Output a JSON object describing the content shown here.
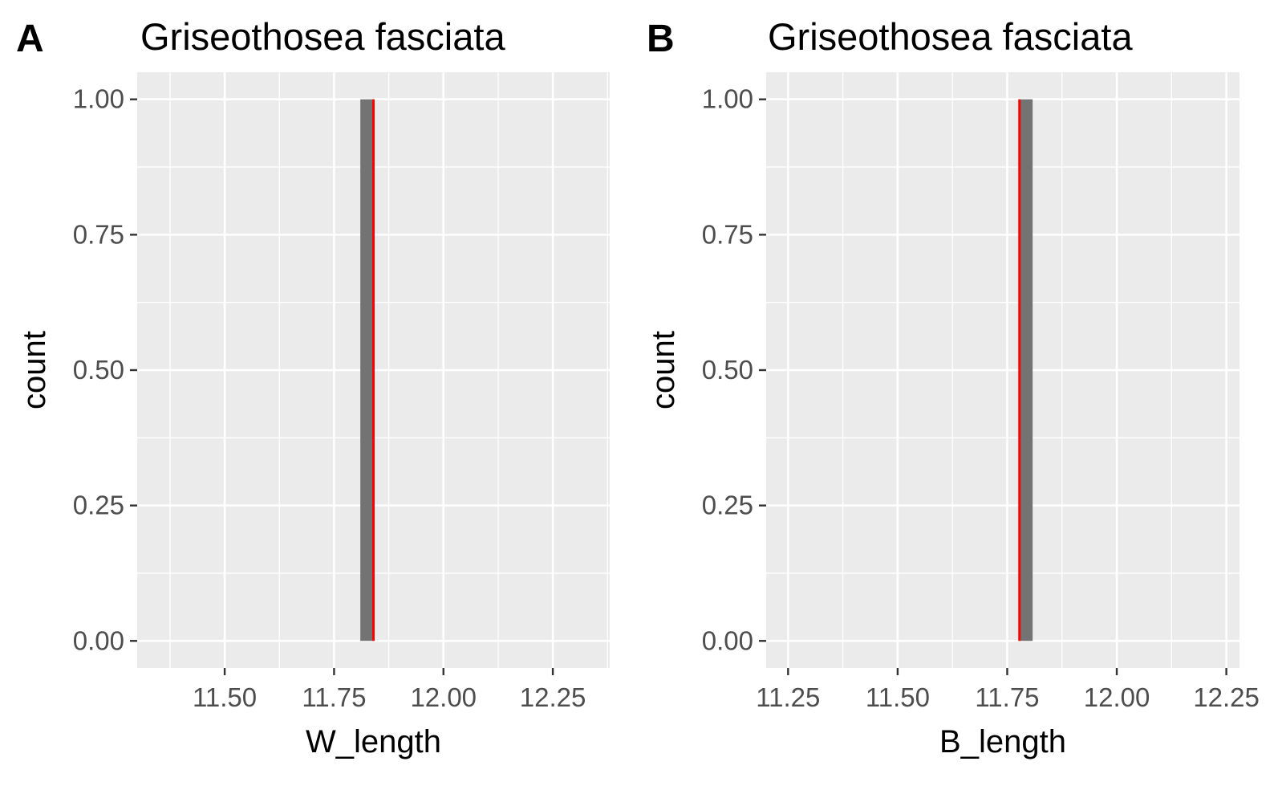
{
  "chart_data": [
    {
      "type": "bar",
      "tag": "A",
      "title": "Griseothosea fasciata",
      "xlabel": "W_length",
      "ylabel": "count",
      "xlim": [
        11.3,
        12.38
      ],
      "ylim": [
        -0.05,
        1.05
      ],
      "x_ticks": [
        11.5,
        11.75,
        12.0,
        12.25
      ],
      "x_tick_labels": [
        "11.50",
        "11.75",
        "12.00",
        "12.25"
      ],
      "y_ticks": [
        0,
        0.25,
        0.5,
        0.75,
        1.0
      ],
      "y_tick_labels": [
        "0.00",
        "0.25",
        "0.50",
        "0.75",
        "1.00"
      ],
      "bars": [
        {
          "x_start": 11.81,
          "x_end": 11.842,
          "count": 1
        }
      ],
      "reference_line": {
        "x": 11.84,
        "color": "#ff0000"
      },
      "grid": true,
      "bar_color": "#737373",
      "panel_color": "#ebebeb"
    },
    {
      "type": "bar",
      "tag": "B",
      "title": "Griseothosea fasciata",
      "xlabel": "B_length",
      "ylabel": "count",
      "xlim": [
        11.2,
        12.28
      ],
      "ylim": [
        -0.05,
        1.05
      ],
      "x_ticks": [
        11.25,
        11.5,
        11.75,
        12.0,
        12.25
      ],
      "x_tick_labels": [
        "11.25",
        "11.50",
        "11.75",
        "12.00",
        "12.25"
      ],
      "y_ticks": [
        0,
        0.25,
        0.5,
        0.75,
        1.0
      ],
      "y_tick_labels": [
        "0.00",
        "0.25",
        "0.50",
        "0.75",
        "1.00"
      ],
      "bars": [
        {
          "x_start": 11.776,
          "x_end": 11.808,
          "count": 1
        }
      ],
      "reference_line": {
        "x": 11.778,
        "color": "#ff0000"
      },
      "grid": true,
      "bar_color": "#737373",
      "panel_color": "#ebebeb"
    }
  ]
}
